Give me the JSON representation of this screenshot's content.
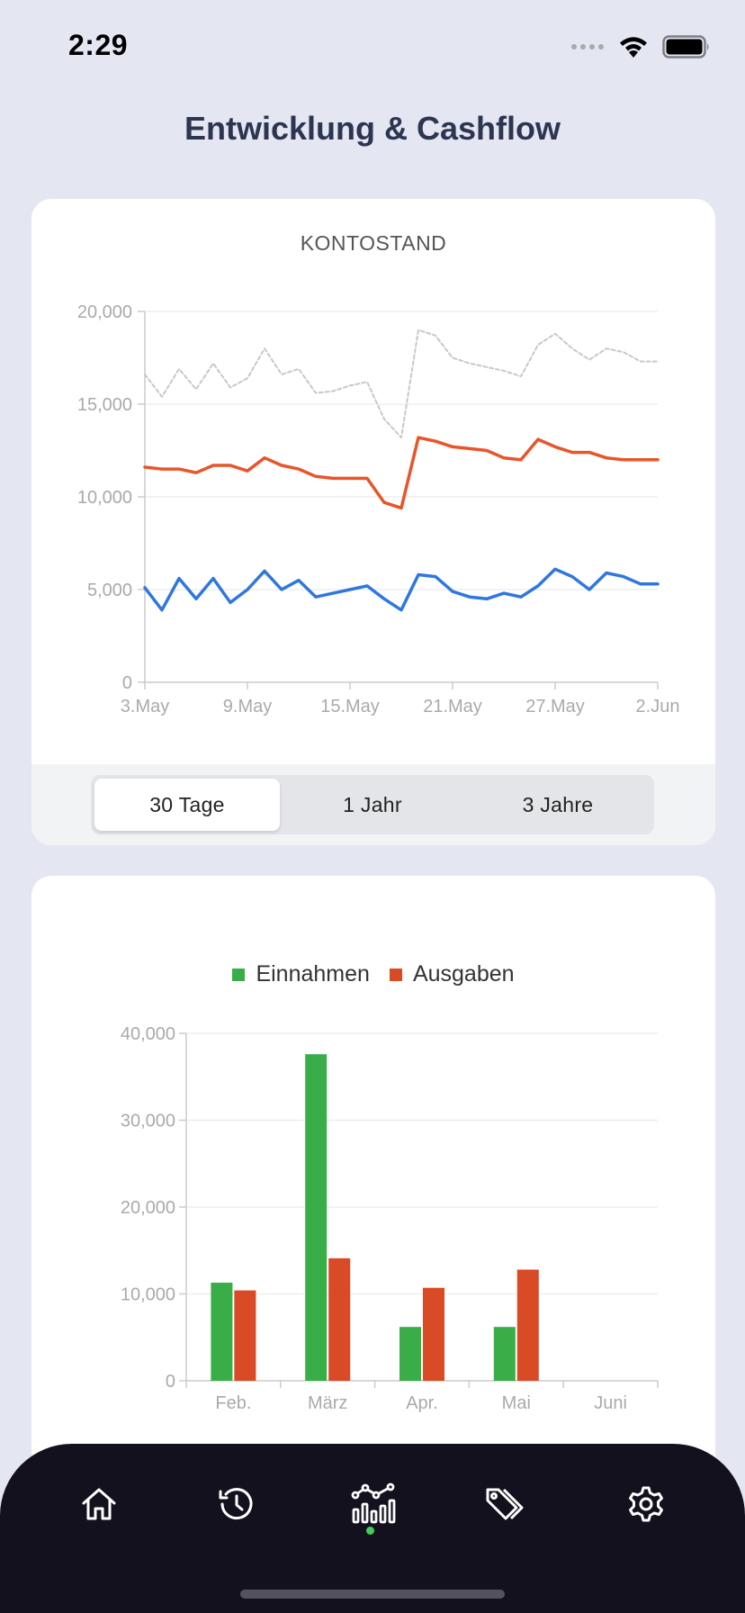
{
  "status": {
    "time": "2:29"
  },
  "page": {
    "title": "Entwicklung & Cashflow"
  },
  "balance_card": {
    "title": "KONTOSTAND",
    "range_options": [
      "30 Tage",
      "1 Jahr",
      "3 Jahre"
    ],
    "selected_range": "30 Tage"
  },
  "cashflow_card": {
    "legend": [
      "Einnahmen",
      "Ausgaben"
    ]
  },
  "colors": {
    "background": "#e4e6f2",
    "income": "#39ae48",
    "expense": "#d94a26",
    "line_orange": "#e8552a",
    "line_blue": "#2f77e0",
    "line_gray": "#c8c8c8",
    "tabbar": "#14111f",
    "active_dot": "#3fcf5a"
  },
  "tabbar": {
    "items": [
      "home-icon",
      "history-icon",
      "chart-icon",
      "tags-icon",
      "settings-icon"
    ],
    "active": "chart-icon"
  },
  "chart_data": [
    {
      "type": "line",
      "title": "KONTOSTAND",
      "x_tick_labels": [
        "3.May",
        "9.May",
        "15.May",
        "21.May",
        "27.May",
        "2.Jun"
      ],
      "y_tick_labels": [
        "0",
        "5,000",
        "10,000",
        "15,000",
        "20,000"
      ],
      "ylim": [
        0,
        20000
      ],
      "x": [
        0,
        1,
        2,
        3,
        4,
        5,
        6,
        7,
        8,
        9,
        10,
        11,
        12,
        13,
        14,
        15,
        16,
        17,
        18,
        19,
        20,
        21,
        22,
        23,
        24,
        25,
        26,
        27,
        28,
        29,
        30
      ],
      "series": [
        {
          "values": [
            16600,
            15400,
            16900,
            15800,
            17200,
            15900,
            16400,
            18000,
            16600,
            16900,
            15600,
            15700,
            16000,
            16200,
            14200,
            13200,
            19000,
            18700,
            17500,
            17200,
            17000,
            16800,
            16500,
            18200,
            18800,
            18000,
            17400,
            18000,
            17800,
            17300,
            17300
          ]
        },
        {
          "values": [
            11600,
            11500,
            11500,
            11300,
            11700,
            11700,
            11400,
            12100,
            11700,
            11500,
            11100,
            11000,
            11000,
            11000,
            9700,
            9400,
            13200,
            13000,
            12700,
            12600,
            12500,
            12100,
            12000,
            13100,
            12700,
            12400,
            12400,
            12100,
            12000,
            12000,
            12000
          ]
        },
        {
          "values": [
            5100,
            3900,
            5600,
            4500,
            5600,
            4300,
            5000,
            6000,
            5000,
            5500,
            4600,
            4800,
            5000,
            5200,
            4500,
            3900,
            5800,
            5700,
            4900,
            4600,
            4500,
            4800,
            4600,
            5200,
            6100,
            5700,
            5000,
            5900,
            5700,
            5300,
            5300
          ]
        }
      ],
      "grid": true,
      "legend": "none"
    },
    {
      "type": "bar",
      "categories": [
        "Feb.",
        "März",
        "Apr.",
        "Mai",
        "Juni"
      ],
      "series": [
        {
          "name": "Einnahmen",
          "values": [
            11300,
            37600,
            6200,
            6200,
            0
          ]
        },
        {
          "name": "Ausgaben",
          "values": [
            10400,
            14100,
            10700,
            12800,
            0
          ]
        }
      ],
      "y_tick_labels": [
        "0",
        "10,000",
        "20,000",
        "30,000",
        "40,000"
      ],
      "ylim": [
        0,
        40000
      ],
      "grid": true,
      "legend": "top"
    }
  ]
}
